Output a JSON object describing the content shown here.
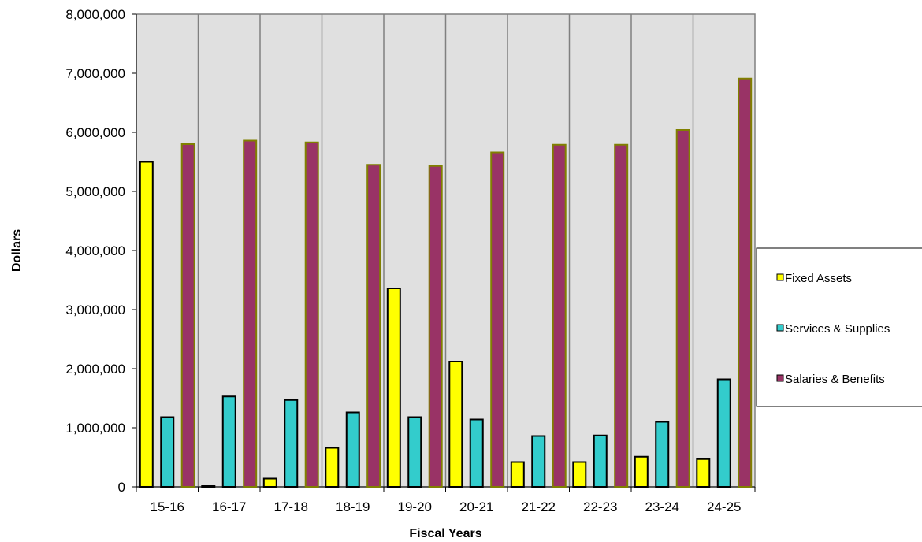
{
  "chart_data": {
    "type": "bar",
    "title": "",
    "xlabel": "Fiscal Years",
    "ylabel": "Dollars",
    "ylim": [
      0,
      8000000
    ],
    "yticks": [
      "0",
      "1,000,000",
      "2,000,000",
      "3,000,000",
      "4,000,000",
      "5,000,000",
      "6,000,000",
      "7,000,000",
      "8,000,000"
    ],
    "categories": [
      "15-16",
      "16-17",
      "17-18",
      "18-19",
      "19-20",
      "20-21",
      "21-22",
      "22-23",
      "23-24",
      "24-25"
    ],
    "series": [
      {
        "name": "Fixed Assets",
        "color": "#ffff00",
        "stroke": "#000000",
        "values": [
          5500000,
          0,
          140000,
          660000,
          3360000,
          2120000,
          420000,
          420000,
          510000,
          470000
        ]
      },
      {
        "name": "Services & Supplies",
        "color": "#33cccc",
        "stroke": "#000000",
        "values": [
          1180000,
          1530000,
          1470000,
          1260000,
          1180000,
          1140000,
          860000,
          870000,
          1100000,
          1820000
        ]
      },
      {
        "name": "Salaries & Benefits",
        "color": "#993366",
        "stroke": "#808000",
        "values": [
          5800000,
          5860000,
          5830000,
          5450000,
          5430000,
          5660000,
          5790000,
          5790000,
          6040000,
          6910000
        ]
      }
    ],
    "grid": "vertical separators",
    "plot_background": "#e0e0e0",
    "legend_position": "right"
  }
}
